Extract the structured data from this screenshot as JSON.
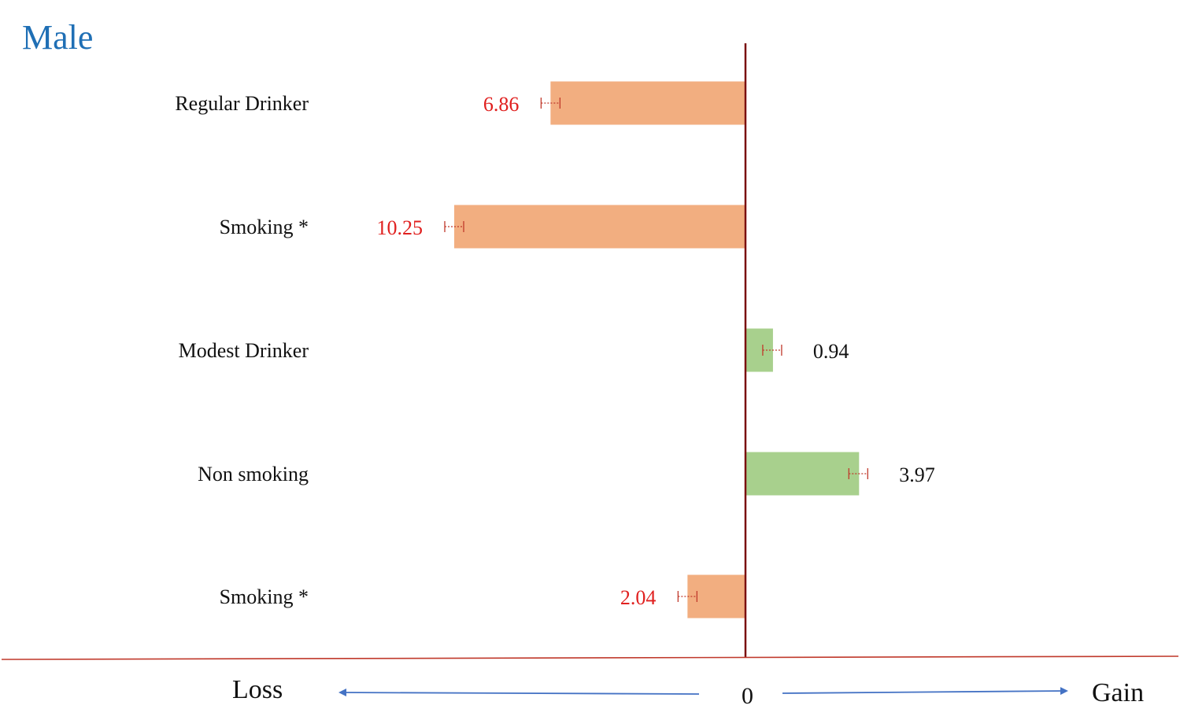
{
  "title": "Male",
  "colors": {
    "title": "#1f6fb5",
    "loss_bar": "#f2ae80",
    "gain_bar": "#a8d08d",
    "loss_label": "#e0201f",
    "gain_label": "#111111",
    "zero_line": "#7a0f0f",
    "baseline": "#c0392b",
    "arrow": "#4472c4",
    "error_bar": "#c0392b"
  },
  "chart_data": {
    "type": "bar",
    "orientation": "horizontal",
    "title": "Male",
    "categories": [
      "Regular Drinker",
      "Smoking *",
      "Modest Drinker",
      "Non smoking",
      "Smoking *"
    ],
    "values": [
      -6.86,
      -10.25,
      0.94,
      3.97,
      -2.04
    ],
    "value_labels": [
      "6.86",
      "10.25",
      "0.94",
      "3.97",
      "2.04"
    ],
    "xlim": [
      -10.25,
      3.97
    ],
    "grid": false,
    "legend": "none"
  },
  "axis": {
    "loss_label": "Loss",
    "gain_label": "Gain",
    "zero_label": "0"
  }
}
